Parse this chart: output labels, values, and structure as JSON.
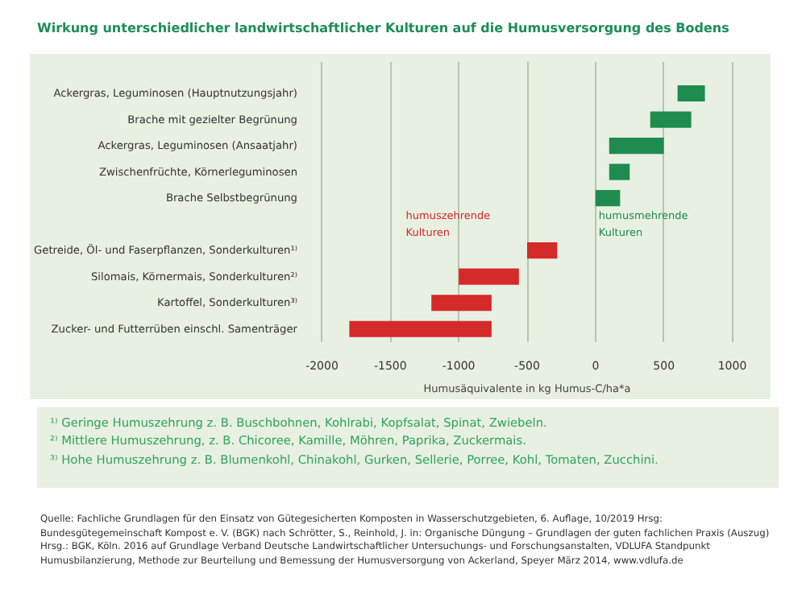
{
  "chart_data": {
    "type": "bar",
    "orientation": "horizontal",
    "title": "Wirkung unterschiedlicher landwirtschaftlicher Kulturen auf die Humusversorgung des Bodens",
    "categories": [
      "Ackergras, Leguminosen (Hauptnutzungsjahr)",
      "Brache mit gezielter Begrünung",
      "Ackergras, Leguminosen (Ansaatjahr)",
      "Zwischenfrüchte, Körnerleguminosen",
      "Brache Selbstbegrünung",
      null,
      "Getreide, Öl- und Faserpflanzen, Sonderkulturen¹⁾",
      "Silomais, Körnermais, Sonderkulturen²⁾",
      "Kartoffel, Sonderkulturen³⁾",
      "Zucker- und Futterrüben einschl. Samenträger"
    ],
    "base": [
      600,
      400,
      100,
      100,
      0,
      null,
      -500,
      -1000,
      -1200,
      -1800
    ],
    "values": [
      200,
      300,
      400,
      150,
      180,
      null,
      220,
      440,
      440,
      1040
    ],
    "colors": [
      "#1e8c4e",
      "#1e8c4e",
      "#1e8c4e",
      "#1e8c4e",
      "#1e8c4e",
      null,
      "#d42a2a",
      "#d42a2a",
      "#d42a2a",
      "#d42a2a"
    ],
    "xlim": [
      -2050,
      1050
    ],
    "xticks": [
      -2000,
      -1500,
      -1000,
      -500,
      0,
      500,
      1000
    ],
    "xlabel": "Humusäquivalente in kg Humus-C/ha*a",
    "grid": "x",
    "annotations": [
      "humuszehrende\nKulturen",
      "humusmehrende\nKulturen",
      "¹⁾ Geringe Humuszehrung z. B. Buschbohnen, Kohlrabi, Kopfsalat, Spinat, Zwiebeln.",
      "²⁾ Mittlere Humuszehrung, z. B. Chicoree, Kamille, Möhren, Paprika, Zuckermais.",
      "³⁾ Hohe Humuszehrung z. B. Blumenkohl, Chinakohl, Gurken, Sellerie, Porree, Kohl, Tomaten, Zucchini.",
      "Quelle:  Fachliche Grundlagen für den Einsatz von Gütegesicherten Komposten in Wasserschutzgebieten, 6. Auflage, 10/2019  Hrsg: Bundesgütegemeinschaft Kompost e. V. (BGK) nach Schrötter, S., Reinhold, J. in: Organische Düngung – Grundlagen der guten fachlichen Praxis (Auszug) Hrsg.: BGK, Köln. 2016 auf Grundlage Verband Deutsche Landwirtschaftlicher Untersuchungs- und Forschungsanstalten, VDLUFA Standpunkt Humusbilanzierung, Methode zur Beurteilung und Bemessung der Humusversorgung von Ackerland, Speyer März 2014, www.vdlufa.de"
    ]
  }
}
